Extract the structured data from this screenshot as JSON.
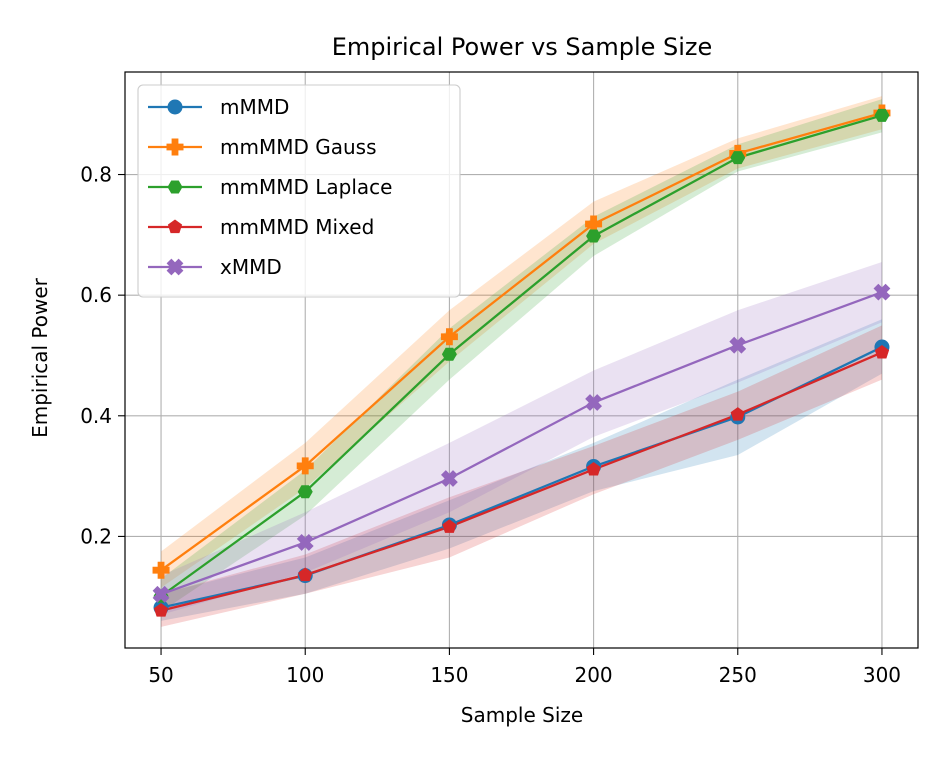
{
  "chart_data": {
    "type": "line",
    "title": "Empirical Power vs Sample Size",
    "xlabel": "Sample Size",
    "ylabel": "Empirical Power",
    "x": [
      50,
      100,
      150,
      200,
      250,
      300
    ],
    "xlim": [
      37.5,
      312.5
    ],
    "ylim": [
      0.015,
      0.97
    ],
    "xticks": [
      50,
      100,
      150,
      200,
      250,
      300
    ],
    "yticks": [
      0.2,
      0.4,
      0.6,
      0.8
    ],
    "ytick_labels": [
      "0.2",
      "0.4",
      "0.6",
      "0.8"
    ],
    "grid": true,
    "legend_position": "upper-left",
    "series": [
      {
        "name": "mMMD",
        "color": "#1f77b4",
        "marker": "circle",
        "values": [
          0.082,
          0.135,
          0.219,
          0.316,
          0.398,
          0.514
        ],
        "lower": [
          0.06,
          0.105,
          0.18,
          0.275,
          0.335,
          0.47
        ],
        "upper": [
          0.105,
          0.165,
          0.26,
          0.355,
          0.46,
          0.56
        ]
      },
      {
        "name": "mmMMD Gauss",
        "color": "#ff7f0e",
        "marker": "plus",
        "values": [
          0.144,
          0.317,
          0.531,
          0.718,
          0.835,
          0.902
        ],
        "lower": [
          0.115,
          0.28,
          0.49,
          0.685,
          0.81,
          0.875
        ],
        "upper": [
          0.175,
          0.355,
          0.575,
          0.755,
          0.86,
          0.93
        ]
      },
      {
        "name": "mmMMD Laplace",
        "color": "#2ca02c",
        "marker": "hexagon",
        "values": [
          0.101,
          0.274,
          0.502,
          0.698,
          0.828,
          0.898
        ],
        "lower": [
          0.075,
          0.235,
          0.46,
          0.665,
          0.805,
          0.87
        ],
        "upper": [
          0.13,
          0.31,
          0.545,
          0.73,
          0.85,
          0.925
        ]
      },
      {
        "name": "mmMMD Mixed",
        "color": "#d62728",
        "marker": "pentagon",
        "values": [
          0.077,
          0.136,
          0.216,
          0.311,
          0.402,
          0.505
        ],
        "lower": [
          0.05,
          0.105,
          0.165,
          0.27,
          0.36,
          0.46
        ],
        "upper": [
          0.105,
          0.17,
          0.265,
          0.35,
          0.44,
          0.55
        ]
      },
      {
        "name": "xMMD",
        "color": "#9467bd",
        "marker": "x",
        "values": [
          0.104,
          0.19,
          0.296,
          0.422,
          0.517,
          0.605
        ],
        "lower": [
          0.07,
          0.14,
          0.24,
          0.365,
          0.455,
          0.555
        ],
        "upper": [
          0.135,
          0.24,
          0.355,
          0.475,
          0.575,
          0.655
        ]
      }
    ]
  }
}
